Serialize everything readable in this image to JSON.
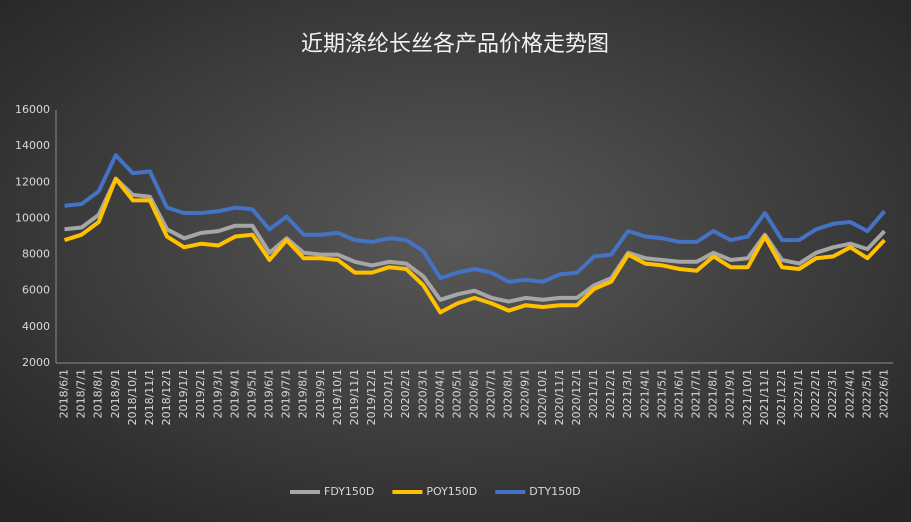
{
  "chart_data": {
    "type": "line",
    "title": "近期涤纶长丝各产品价格走势图",
    "categories": [
      "2018/6/1",
      "2018/7/1",
      "2018/8/1",
      "2018/9/1",
      "2018/10/1",
      "2018/11/1",
      "2018/12/1",
      "2019/1/1",
      "2019/2/1",
      "2019/3/1",
      "2019/4/1",
      "2019/5/1",
      "2019/6/1",
      "2019/7/1",
      "2019/8/1",
      "2019/9/1",
      "2019/10/1",
      "2019/11/1",
      "2019/12/1",
      "2020/1/1",
      "2020/2/1",
      "2020/3/1",
      "2020/4/1",
      "2020/5/1",
      "2020/6/1",
      "2020/7/1",
      "2020/8/1",
      "2020/9/1",
      "2020/10/1",
      "2020/11/1",
      "2020/12/1",
      "2021/1/1",
      "2021/2/1",
      "2021/3/1",
      "2021/4/1",
      "2021/5/1",
      "2021/6/1",
      "2021/7/1",
      "2021/8/1",
      "2021/9/1",
      "2021/10/1",
      "2021/11/1",
      "2021/12/1",
      "2022/1/1",
      "2022/2/1",
      "2022/3/1",
      "2022/4/1",
      "2022/5/1",
      "2022/6/1"
    ],
    "series": [
      {
        "name": "FDY150D",
        "color": "#a6a6a6",
        "values": [
          9400,
          9500,
          10200,
          12200,
          11300,
          11200,
          9400,
          8900,
          9200,
          9300,
          9600,
          9600,
          8100,
          8900,
          8100,
          8000,
          8000,
          7600,
          7400,
          7600,
          7500,
          6800,
          5500,
          5800,
          6000,
          5600,
          5400,
          5600,
          5500,
          5600,
          5600,
          6300,
          6700,
          8100,
          7800,
          7700,
          7600,
          7600,
          8100,
          7700,
          7800,
          9100,
          7700,
          7500,
          8100,
          8400,
          8600,
          8300,
          9300
        ]
      },
      {
        "name": "POY150D",
        "color": "#ffc000",
        "values": [
          8800,
          9100,
          9800,
          12200,
          11000,
          11000,
          9000,
          8400,
          8600,
          8500,
          9000,
          9100,
          7700,
          8800,
          7800,
          7800,
          7700,
          7000,
          7000,
          7300,
          7200,
          6300,
          4800,
          5300,
          5600,
          5300,
          4900,
          5200,
          5100,
          5200,
          5200,
          6100,
          6500,
          8000,
          7500,
          7400,
          7200,
          7100,
          7900,
          7300,
          7300,
          9000,
          7300,
          7200,
          7800,
          7900,
          8400,
          7800,
          8800
        ]
      },
      {
        "name": "DTY150D",
        "color": "#4472c4",
        "values": [
          10700,
          10800,
          11500,
          13500,
          12500,
          12600,
          10600,
          10300,
          10300,
          10400,
          10600,
          10500,
          9400,
          10100,
          9100,
          9100,
          9200,
          8800,
          8700,
          8900,
          8800,
          8200,
          6700,
          7000,
          7200,
          7000,
          6500,
          6600,
          6500,
          6900,
          7000,
          7900,
          8000,
          9300,
          9000,
          8900,
          8700,
          8700,
          9300,
          8800,
          9000,
          10300,
          8800,
          8800,
          9400,
          9700,
          9800,
          9300,
          10400
        ]
      }
    ],
    "ylim": [
      2000,
      16000
    ],
    "yticks": [
      2000,
      4000,
      6000,
      8000,
      10000,
      12000,
      14000,
      16000
    ],
    "grid": false,
    "legend": "bottom"
  }
}
